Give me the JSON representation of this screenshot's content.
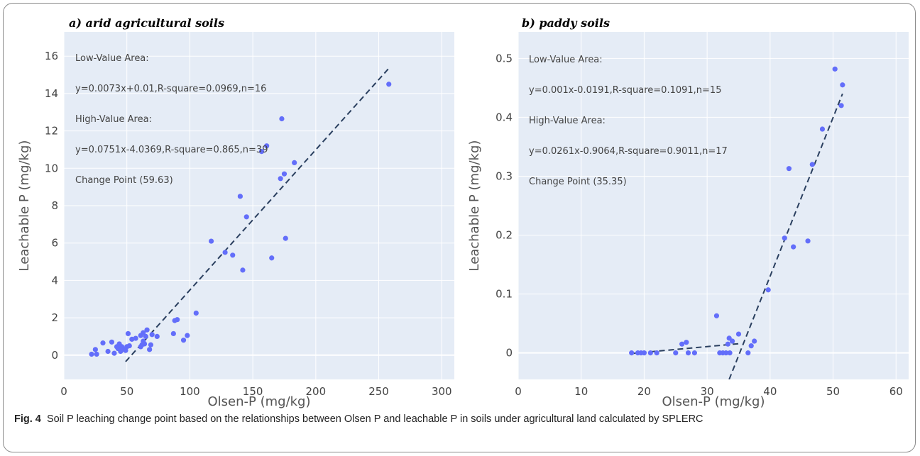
{
  "caption": {
    "label": "Fig. 4",
    "text": "Soil P leaching change point based on the relationships between Olsen P and leachable P in soils under agricultural land calculated by SPLERC"
  },
  "colors": {
    "plot_bg": "#e5ecf6",
    "grid": "#ffffff",
    "point": "#636efa",
    "fit_line": "#2a3f5f"
  },
  "chart_data": [
    {
      "type": "scatter",
      "title": "a) arid agricultural soils",
      "xlabel": "Olsen-P (mg/kg)",
      "ylabel": "Leachable P (mg/kg)",
      "xlim": [
        0,
        310
      ],
      "ylim": [
        -1.3,
        17.3
      ],
      "xticks": [
        0,
        50,
        100,
        150,
        200,
        250,
        300
      ],
      "yticks": [
        0,
        2,
        4,
        6,
        8,
        10,
        12,
        14,
        16
      ],
      "grid": true,
      "annotations": [
        "Low-Value Area:",
        "y=0.0073x+0.01,R-square=0.0969,n=16",
        "High-Value Area:",
        "y=0.0751x-4.0369,R-square=0.865,n=39",
        "Change Point (59.63)"
      ],
      "fit_lines": [
        {
          "x": [
            49,
            258
          ],
          "y": [
            -0.35,
            15.35
          ]
        }
      ],
      "points": [
        [
          22,
          0.05
        ],
        [
          25,
          0.3
        ],
        [
          26,
          0.05
        ],
        [
          31,
          0.65
        ],
        [
          35,
          0.2
        ],
        [
          38,
          0.7
        ],
        [
          40,
          0.1
        ],
        [
          42,
          0.45
        ],
        [
          43,
          0.35
        ],
        [
          44,
          0.6
        ],
        [
          45,
          0.2
        ],
        [
          46,
          0.45
        ],
        [
          48,
          0.3
        ],
        [
          49,
          0.25
        ],
        [
          50,
          0.45
        ],
        [
          51,
          1.15
        ],
        [
          52,
          0.5
        ],
        [
          54,
          0.85
        ],
        [
          57,
          0.9
        ],
        [
          61,
          0.45
        ],
        [
          61,
          1.05
        ],
        [
          62,
          0.55
        ],
        [
          63,
          0.75
        ],
        [
          63,
          1.2
        ],
        [
          64,
          0.6
        ],
        [
          65,
          1.0
        ],
        [
          66,
          1.35
        ],
        [
          68,
          0.3
        ],
        [
          69,
          0.55
        ],
        [
          70,
          1.1
        ],
        [
          74,
          1.0
        ],
        [
          87,
          1.15
        ],
        [
          88,
          1.85
        ],
        [
          90,
          1.9
        ],
        [
          95,
          0.8
        ],
        [
          98,
          1.05
        ],
        [
          105,
          2.25
        ],
        [
          117,
          6.1
        ],
        [
          128,
          5.5
        ],
        [
          134,
          5.35
        ],
        [
          140,
          8.5
        ],
        [
          142,
          4.55
        ],
        [
          145,
          7.4
        ],
        [
          157,
          10.9
        ],
        [
          161,
          11.2
        ],
        [
          165,
          5.2
        ],
        [
          172,
          9.45
        ],
        [
          173,
          12.65
        ],
        [
          175,
          9.7
        ],
        [
          176,
          6.25
        ],
        [
          183,
          10.3
        ],
        [
          258,
          14.5
        ]
      ]
    },
    {
      "type": "scatter",
      "title": "b) paddy soils",
      "xlabel": "Olsen-P (mg/kg)",
      "ylabel": "Leachable P (mg/kg)",
      "xlim": [
        0,
        62
      ],
      "ylim": [
        -0.045,
        0.545
      ],
      "xticks": [
        0,
        10,
        20,
        30,
        40,
        50,
        60
      ],
      "yticks": [
        0,
        0.1,
        0.2,
        0.3,
        0.4,
        0.5
      ],
      "ytick_labels": [
        "0",
        "0.1",
        "0.2",
        "0.3",
        "0.4",
        "0.5"
      ],
      "grid": true,
      "annotations": [
        "Low-Value Area:",
        "y=0.001x-0.0191,R-square=0.1091,n=15",
        "High-Value Area:",
        "y=0.0261x-0.9064,R-square=0.9011,n=17",
        "Change Point (35.35)"
      ],
      "fit_lines": [
        {
          "x": [
            18,
            35.4
          ],
          "y": [
            -0.001,
            0.016
          ]
        },
        {
          "x": [
            33.5,
            51.5
          ],
          "y": [
            -0.045,
            0.44
          ]
        }
      ],
      "points": [
        [
          18,
          0
        ],
        [
          19,
          0
        ],
        [
          19.5,
          0
        ],
        [
          20,
          0
        ],
        [
          21,
          0
        ],
        [
          22,
          0
        ],
        [
          25,
          0
        ],
        [
          26,
          0.015
        ],
        [
          26.7,
          0.018
        ],
        [
          27,
          0
        ],
        [
          28,
          0
        ],
        [
          31.5,
          0.063
        ],
        [
          32,
          0
        ],
        [
          32.5,
          0
        ],
        [
          33,
          0
        ],
        [
          33.3,
          0.015
        ],
        [
          33.5,
          0.025
        ],
        [
          33.6,
          0
        ],
        [
          34,
          0.02
        ],
        [
          35,
          0.032
        ],
        [
          36.5,
          0
        ],
        [
          37,
          0.012
        ],
        [
          37.5,
          0.02
        ],
        [
          39.7,
          0.107
        ],
        [
          42.3,
          0.195
        ],
        [
          43,
          0.313
        ],
        [
          43.7,
          0.18
        ],
        [
          46,
          0.19
        ],
        [
          46.7,
          0.32
        ],
        [
          48.3,
          0.38
        ],
        [
          50.3,
          0.482
        ],
        [
          51.3,
          0.42
        ],
        [
          51.5,
          0.455
        ]
      ]
    }
  ]
}
